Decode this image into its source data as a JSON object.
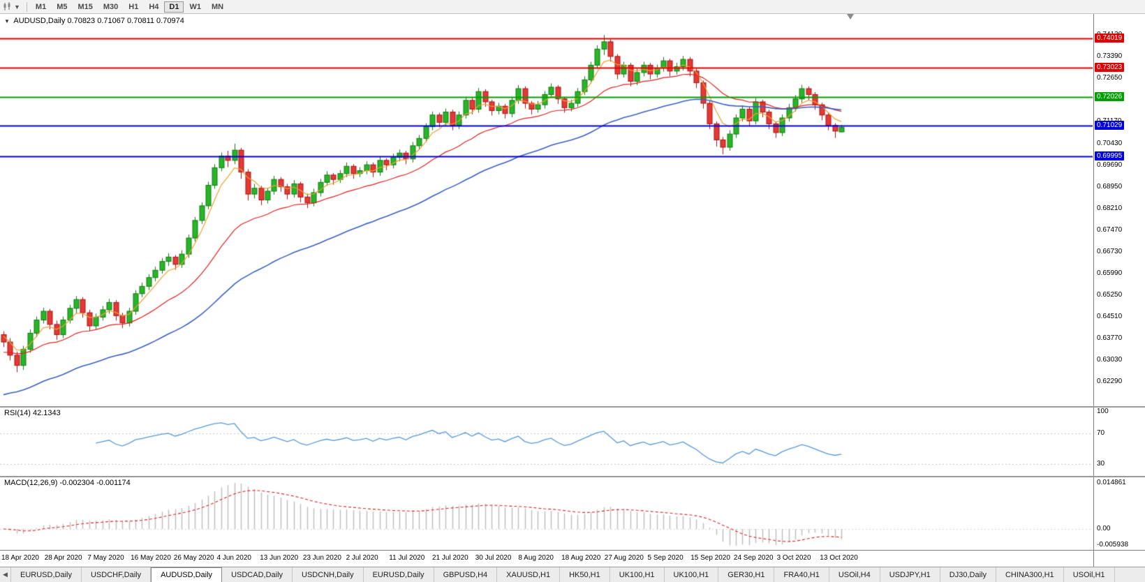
{
  "toolbar": {
    "timeframes": [
      "M1",
      "M5",
      "M15",
      "M30",
      "H1",
      "H4",
      "D1",
      "W1",
      "MN"
    ],
    "active_timeframe": "D1"
  },
  "chart": {
    "symbol": "AUDUSD,Daily",
    "ohlc_text": "0.70823 0.71067 0.70811 0.70974",
    "price_axis": {
      "ylim": [
        0.6146,
        0.7485
      ],
      "labels": [
        "0.74130",
        "0.73390",
        "0.72650",
        "0.71910",
        "0.71170",
        "0.70430",
        "0.69690",
        "0.68950",
        "0.68210",
        "0.67470",
        "0.66730",
        "0.65990",
        "0.65250",
        "0.64510",
        "0.63770",
        "0.63030",
        "0.62290"
      ]
    },
    "levels": [
      {
        "price": 0.74019,
        "label": "0.74019",
        "color": "#e00000"
      },
      {
        "price": 0.73023,
        "label": "0.73023",
        "color": "#e00000"
      },
      {
        "price": 0.72026,
        "label": "0.72026",
        "color": "#00a000"
      },
      {
        "price": 0.71029,
        "label": "0.71029",
        "color": "#0000dd"
      },
      {
        "price": 0.69995,
        "label": "0.69995",
        "color": "#0000dd"
      }
    ],
    "date_axis": [
      "18 Apr 2020",
      "28 Apr 2020",
      "7 May 2020",
      "16 May 2020",
      "26 May 2020",
      "4 Jun 2020",
      "13 Jun 2020",
      "23 Jun 2020",
      "2 Jul 2020",
      "11 Jul 2020",
      "21 Jul 2020",
      "30 Jul 2020",
      "8 Aug 2020",
      "18 Aug 2020",
      "27 Aug 2020",
      "5 Sep 2020",
      "15 Sep 2020",
      "24 Sep 2020",
      "3 Oct 2020",
      "13 Oct 2020"
    ]
  },
  "chart_data": {
    "type": "candlestick",
    "symbol": "AUDUSD",
    "timeframe": "Daily",
    "current_bar": {
      "open": 0.70823,
      "high": 0.71067,
      "low": 0.70811,
      "close": 0.70974
    },
    "style": {
      "up_fill": "#28b628",
      "up_stroke": "#117a11",
      "down_fill": "#e53935",
      "down_stroke": "#a31515",
      "background": "#ffffff"
    },
    "candles": [
      [
        0.639,
        0.6402,
        0.6348,
        0.6365
      ],
      [
        0.6365,
        0.6378,
        0.6302,
        0.632
      ],
      [
        0.632,
        0.6332,
        0.6262,
        0.6285
      ],
      [
        0.6285,
        0.6352,
        0.627,
        0.634
      ],
      [
        0.634,
        0.6408,
        0.6328,
        0.6395
      ],
      [
        0.6395,
        0.6452,
        0.6382,
        0.644
      ],
      [
        0.644,
        0.6482,
        0.6428,
        0.647
      ],
      [
        0.647,
        0.6478,
        0.6408,
        0.6425
      ],
      [
        0.6425,
        0.6438,
        0.6372,
        0.639
      ],
      [
        0.639,
        0.6452,
        0.6378,
        0.644
      ],
      [
        0.644,
        0.6492,
        0.6428,
        0.648
      ],
      [
        0.648,
        0.6522,
        0.6462,
        0.651
      ],
      [
        0.651,
        0.6518,
        0.6448,
        0.6465
      ],
      [
        0.6465,
        0.6475,
        0.6402,
        0.642
      ],
      [
        0.642,
        0.6462,
        0.6408,
        0.645
      ],
      [
        0.645,
        0.6488,
        0.6438,
        0.6475
      ],
      [
        0.6475,
        0.6512,
        0.6462,
        0.65
      ],
      [
        0.65,
        0.6508,
        0.6438,
        0.6455
      ],
      [
        0.6455,
        0.6465,
        0.6412,
        0.643
      ],
      [
        0.643,
        0.6482,
        0.6418,
        0.647
      ],
      [
        0.647,
        0.6542,
        0.6458,
        0.653
      ],
      [
        0.653,
        0.6568,
        0.6518,
        0.6555
      ],
      [
        0.6555,
        0.6596,
        0.6542,
        0.6585
      ],
      [
        0.6585,
        0.6622,
        0.6572,
        0.661
      ],
      [
        0.661,
        0.6652,
        0.6598,
        0.664
      ],
      [
        0.664,
        0.6668,
        0.6625,
        0.6655
      ],
      [
        0.6655,
        0.6662,
        0.6612,
        0.663
      ],
      [
        0.663,
        0.6678,
        0.6618,
        0.6665
      ],
      [
        0.6665,
        0.6732,
        0.6652,
        0.672
      ],
      [
        0.672,
        0.6792,
        0.6708,
        0.678
      ],
      [
        0.678,
        0.6842,
        0.6768,
        0.683
      ],
      [
        0.683,
        0.6912,
        0.6818,
        0.69
      ],
      [
        0.69,
        0.6972,
        0.6888,
        0.696
      ],
      [
        0.696,
        0.7012,
        0.6948,
        0.7
      ],
      [
        0.7,
        0.7018,
        0.6962,
        0.6985
      ],
      [
        0.6985,
        0.7042,
        0.6972,
        0.702
      ],
      [
        0.702,
        0.7028,
        0.6922,
        0.6945
      ],
      [
        0.6945,
        0.6955,
        0.6848,
        0.687
      ],
      [
        0.687,
        0.6905,
        0.6855,
        0.689
      ],
      [
        0.689,
        0.6898,
        0.6832,
        0.685
      ],
      [
        0.685,
        0.6892,
        0.6838,
        0.688
      ],
      [
        0.688,
        0.6932,
        0.6868,
        0.692
      ],
      [
        0.692,
        0.6928,
        0.6878,
        0.6895
      ],
      [
        0.6895,
        0.6905,
        0.6852,
        0.687
      ],
      [
        0.687,
        0.6918,
        0.6858,
        0.6905
      ],
      [
        0.6905,
        0.6912,
        0.6842,
        0.686
      ],
      [
        0.686,
        0.6872,
        0.6822,
        0.684
      ],
      [
        0.684,
        0.6888,
        0.6828,
        0.6875
      ],
      [
        0.6875,
        0.6922,
        0.6862,
        0.691
      ],
      [
        0.691,
        0.6948,
        0.6898,
        0.6935
      ],
      [
        0.6935,
        0.6942,
        0.6902,
        0.692
      ],
      [
        0.692,
        0.6952,
        0.6908,
        0.694
      ],
      [
        0.694,
        0.6978,
        0.6928,
        0.6965
      ],
      [
        0.6965,
        0.6972,
        0.6922,
        0.694
      ],
      [
        0.694,
        0.6962,
        0.6928,
        0.695
      ],
      [
        0.695,
        0.6982,
        0.6938,
        0.697
      ],
      [
        0.697,
        0.6978,
        0.6928,
        0.6945
      ],
      [
        0.6945,
        0.6998,
        0.6932,
        0.6985
      ],
      [
        0.6985,
        0.6992,
        0.6952,
        0.697
      ],
      [
        0.697,
        0.7008,
        0.6958,
        0.6995
      ],
      [
        0.6995,
        0.7022,
        0.6982,
        0.701
      ],
      [
        0.701,
        0.7018,
        0.6972,
        0.699
      ],
      [
        0.699,
        0.7048,
        0.6978,
        0.7035
      ],
      [
        0.7035,
        0.7072,
        0.7022,
        0.706
      ],
      [
        0.706,
        0.7112,
        0.7048,
        0.71
      ],
      [
        0.71,
        0.7152,
        0.7088,
        0.714
      ],
      [
        0.714,
        0.7148,
        0.7098,
        0.7115
      ],
      [
        0.7115,
        0.7162,
        0.7102,
        0.715
      ],
      [
        0.715,
        0.7158,
        0.7088,
        0.7105
      ],
      [
        0.7105,
        0.7152,
        0.7092,
        0.714
      ],
      [
        0.714,
        0.7202,
        0.7128,
        0.719
      ],
      [
        0.719,
        0.7198,
        0.7142,
        0.716
      ],
      [
        0.716,
        0.7232,
        0.7148,
        0.722
      ],
      [
        0.722,
        0.7228,
        0.7168,
        0.7185
      ],
      [
        0.7185,
        0.7192,
        0.7138,
        0.7155
      ],
      [
        0.7155,
        0.7182,
        0.7142,
        0.717
      ],
      [
        0.717,
        0.7178,
        0.7128,
        0.7145
      ],
      [
        0.7145,
        0.7202,
        0.7132,
        0.719
      ],
      [
        0.719,
        0.7242,
        0.7178,
        0.723
      ],
      [
        0.723,
        0.7238,
        0.7162,
        0.718
      ],
      [
        0.718,
        0.7188,
        0.7142,
        0.716
      ],
      [
        0.716,
        0.7188,
        0.7148,
        0.7175
      ],
      [
        0.7175,
        0.7222,
        0.7162,
        0.721
      ],
      [
        0.721,
        0.7248,
        0.7198,
        0.7235
      ],
      [
        0.7235,
        0.7242,
        0.7178,
        0.7195
      ],
      [
        0.7195,
        0.7202,
        0.7148,
        0.7165
      ],
      [
        0.7165,
        0.7192,
        0.7152,
        0.718
      ],
      [
        0.718,
        0.7232,
        0.7168,
        0.722
      ],
      [
        0.722,
        0.7272,
        0.7208,
        0.726
      ],
      [
        0.726,
        0.7322,
        0.7248,
        0.731
      ],
      [
        0.731,
        0.7378,
        0.7298,
        0.7365
      ],
      [
        0.7365,
        0.7413,
        0.7345,
        0.739
      ],
      [
        0.739,
        0.7398,
        0.7322,
        0.734
      ],
      [
        0.734,
        0.7348,
        0.7262,
        0.728
      ],
      [
        0.728,
        0.7322,
        0.7268,
        0.731
      ],
      [
        0.731,
        0.7318,
        0.7238,
        0.7255
      ],
      [
        0.7255,
        0.7298,
        0.7242,
        0.7285
      ],
      [
        0.7285,
        0.7322,
        0.7272,
        0.731
      ],
      [
        0.731,
        0.7318,
        0.7262,
        0.728
      ],
      [
        0.728,
        0.7312,
        0.7268,
        0.73
      ],
      [
        0.73,
        0.7338,
        0.7288,
        0.7325
      ],
      [
        0.7325,
        0.7332,
        0.7272,
        0.729
      ],
      [
        0.729,
        0.7318,
        0.7278,
        0.7305
      ],
      [
        0.7305,
        0.7342,
        0.7292,
        0.733
      ],
      [
        0.733,
        0.7338,
        0.7272,
        0.729
      ],
      [
        0.729,
        0.7298,
        0.7232,
        0.725
      ],
      [
        0.725,
        0.7258,
        0.7162,
        0.718
      ],
      [
        0.718,
        0.7188,
        0.7092,
        0.711
      ],
      [
        0.711,
        0.7118,
        0.7032,
        0.7055
      ],
      [
        0.7055,
        0.7065,
        0.7006,
        0.703
      ],
      [
        0.703,
        0.7088,
        0.7018,
        0.7075
      ],
      [
        0.7075,
        0.7142,
        0.7062,
        0.713
      ],
      [
        0.713,
        0.7172,
        0.7118,
        0.716
      ],
      [
        0.716,
        0.7168,
        0.7102,
        0.712
      ],
      [
        0.712,
        0.7198,
        0.7108,
        0.7185
      ],
      [
        0.7185,
        0.7192,
        0.7132,
        0.715
      ],
      [
        0.715,
        0.7158,
        0.7092,
        0.711
      ],
      [
        0.711,
        0.7118,
        0.7062,
        0.708
      ],
      [
        0.708,
        0.7142,
        0.7068,
        0.713
      ],
      [
        0.713,
        0.7178,
        0.7118,
        0.7165
      ],
      [
        0.7165,
        0.7208,
        0.7152,
        0.7195
      ],
      [
        0.7195,
        0.7243,
        0.7182,
        0.723
      ],
      [
        0.723,
        0.7238,
        0.7192,
        0.721
      ],
      [
        0.721,
        0.7218,
        0.7158,
        0.7175
      ],
      [
        0.7175,
        0.7182,
        0.7122,
        0.714
      ],
      [
        0.714,
        0.7148,
        0.7088,
        0.7105
      ],
      [
        0.7105,
        0.7112,
        0.7062,
        0.7085
      ],
      [
        0.70823,
        0.71067,
        0.70811,
        0.70974
      ]
    ],
    "overlays": [
      {
        "name": "ma-fast",
        "period": 5,
        "color": "#f0a030",
        "start": 0.6385
      },
      {
        "name": "ma-mid",
        "period": 20,
        "color": "#e02020",
        "start": 0.633
      },
      {
        "name": "ma-slow",
        "period": 45,
        "color": "#3a5fc8",
        "start": 0.6185
      }
    ],
    "rsi": {
      "label": "RSI(14) 42.1343",
      "period": 14,
      "value": "42.1343",
      "axis_labels": [
        "100",
        "70",
        "30"
      ],
      "axis_values": [
        100,
        70,
        30
      ],
      "color": "#5599dd"
    },
    "macd": {
      "label": "MACD(12,26,9) -0.002304 -0.001174",
      "fast": 12,
      "slow": 26,
      "signal_period": 9,
      "values_text": "-0.002304 -0.001174",
      "axis_labels": [
        "0.014861",
        "0.00",
        "-0.005938"
      ],
      "hist_color": "#bdbdbd",
      "signal_color": "#e02020"
    }
  },
  "tabs": {
    "active_index": 2,
    "items": [
      {
        "label": "EURUSD,Daily"
      },
      {
        "label": "USDCHF,Daily"
      },
      {
        "label": "AUDUSD,Daily"
      },
      {
        "label": "USDCAD,Daily"
      },
      {
        "label": "USDCNH,Daily"
      },
      {
        "label": "EURUSD,Daily"
      },
      {
        "label": "GBPUSD,H4"
      },
      {
        "label": "XAUUSD,H1"
      },
      {
        "label": "HK50,H1"
      },
      {
        "label": "UK100,H1"
      },
      {
        "label": "UK100,H1"
      },
      {
        "label": "GER30,H1"
      },
      {
        "label": "FRA40,H1"
      },
      {
        "label": "USOil,H4"
      },
      {
        "label": "USDJPY,H1"
      },
      {
        "label": "DJ30,Daily"
      },
      {
        "label": "CHINA300,H1"
      },
      {
        "label": "USOil,H1"
      }
    ]
  }
}
